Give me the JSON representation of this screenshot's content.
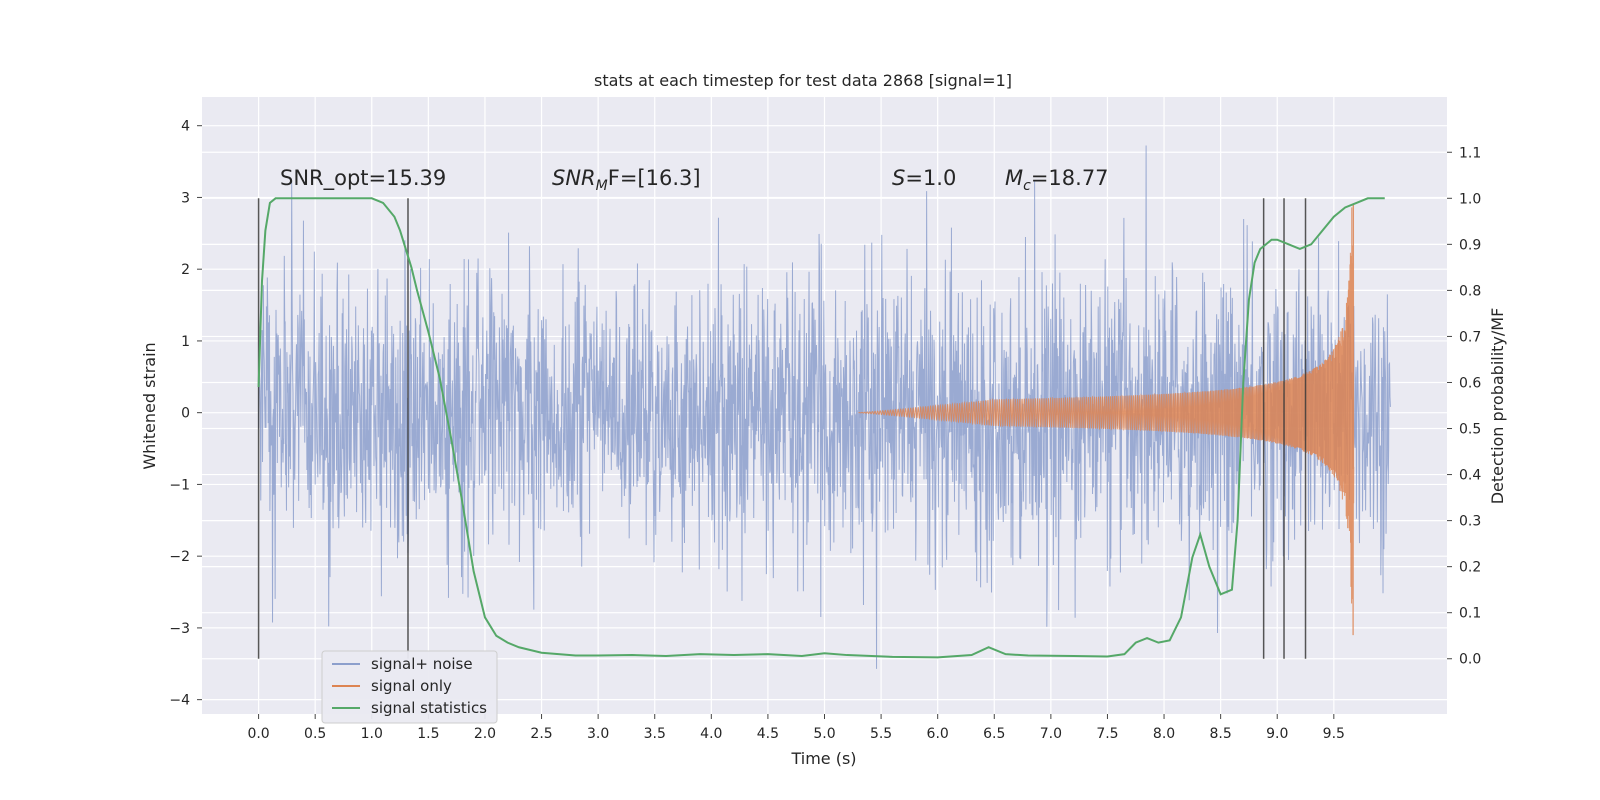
{
  "chart_data": {
    "type": "line",
    "title": "stats at each timestep for test data 2868 [signal=1]",
    "xlabel": "Time (s)",
    "ylabel": "Whitened strain",
    "y2label": "Detection probability/MF",
    "xlim": [
      -0.5,
      10.5
    ],
    "ylim": [
      -4.2,
      4.4
    ],
    "y2lim": [
      -0.12,
      1.22
    ],
    "grid": true,
    "x_ticks": [
      "0.0",
      "0.5",
      "1.0",
      "1.5",
      "2.0",
      "2.5",
      "3.0",
      "3.5",
      "4.0",
      "4.5",
      "5.0",
      "5.5",
      "6.0",
      "6.5",
      "7.0",
      "7.5",
      "8.0",
      "8.5",
      "9.0",
      "9.5"
    ],
    "y_ticks": [
      "4",
      "3",
      "2",
      "1",
      "0",
      "−1",
      "−2",
      "−3",
      "−4"
    ],
    "y2_ticks": [
      "1.1",
      "1.0",
      "0.9",
      "0.8",
      "0.7",
      "0.6",
      "0.5",
      "0.4",
      "0.3",
      "0.2",
      "0.1",
      "0.0"
    ],
    "annotations": {
      "snr_opt": "SNR_opt=15.39",
      "snr_mf_prefix": "SNR",
      "snr_mf_sub": "M",
      "snr_mf_suffix": "F=[16.3]",
      "s_label": "S",
      "s_value": "=1.0",
      "mc_label": "M",
      "mc_sub": "c",
      "mc_value": "=18.77"
    },
    "legend": {
      "placement": "lower-left",
      "entries": [
        "signal+ noise",
        "signal only",
        "signal statistics"
      ]
    },
    "colors": {
      "noise": "#8c9fcc",
      "signal": "#dd8452",
      "stat": "#55a868",
      "vline": "#3a3a3a",
      "axes_bg": "#eaeaf2",
      "grid": "#ffffff"
    },
    "series": [
      {
        "name": "signal+ noise",
        "axis": "left",
        "description_values": {
          "t_start": 0.0,
          "t_end": 10.0,
          "dense_envelope": [
            -1.3,
            1.3
          ],
          "max": 4.05,
          "min": -3.95
        }
      },
      {
        "name": "signal only",
        "axis": "left",
        "chirp": {
          "t_start": 5.3,
          "t_merge": 9.68,
          "amplitude_peak": 2.9,
          "amplitude_min": -3.1
        }
      },
      {
        "name": "signal statistics",
        "axis": "right",
        "x": [
          0.0,
          0.03,
          0.06,
          0.1,
          0.15,
          0.25,
          0.5,
          0.8,
          1.0,
          1.1,
          1.2,
          1.25,
          1.3,
          1.35,
          1.4,
          1.5,
          1.6,
          1.7,
          1.8,
          1.9,
          2.0,
          2.1,
          2.2,
          2.3,
          2.5,
          2.8,
          3.0,
          3.3,
          3.6,
          3.9,
          4.2,
          4.5,
          4.8,
          5.0,
          5.2,
          5.6,
          6.0,
          6.3,
          6.45,
          6.6,
          6.8,
          7.2,
          7.5,
          7.65,
          7.75,
          7.85,
          7.95,
          8.05,
          8.15,
          8.25,
          8.32,
          8.4,
          8.5,
          8.6,
          8.65,
          8.7,
          8.75,
          8.8,
          8.85,
          8.9,
          8.95,
          9.0,
          9.1,
          9.2,
          9.3,
          9.4,
          9.5,
          9.6,
          9.7,
          9.8,
          9.9,
          9.95
        ],
        "y": [
          0.59,
          0.82,
          0.93,
          0.99,
          1.0,
          1.0,
          1.0,
          1.0,
          1.0,
          0.99,
          0.96,
          0.93,
          0.89,
          0.85,
          0.8,
          0.71,
          0.61,
          0.48,
          0.34,
          0.19,
          0.09,
          0.05,
          0.035,
          0.025,
          0.013,
          0.007,
          0.007,
          0.008,
          0.006,
          0.01,
          0.008,
          0.01,
          0.006,
          0.012,
          0.008,
          0.004,
          0.003,
          0.008,
          0.025,
          0.01,
          0.007,
          0.006,
          0.005,
          0.01,
          0.035,
          0.045,
          0.035,
          0.04,
          0.09,
          0.22,
          0.27,
          0.2,
          0.14,
          0.15,
          0.3,
          0.6,
          0.78,
          0.86,
          0.89,
          0.9,
          0.91,
          0.91,
          0.9,
          0.89,
          0.9,
          0.93,
          0.96,
          0.98,
          0.99,
          1.0,
          1.0,
          1.0
        ]
      }
    ],
    "vlines_s": [
      0.0,
      1.32,
      8.88,
      9.06,
      9.25
    ]
  }
}
